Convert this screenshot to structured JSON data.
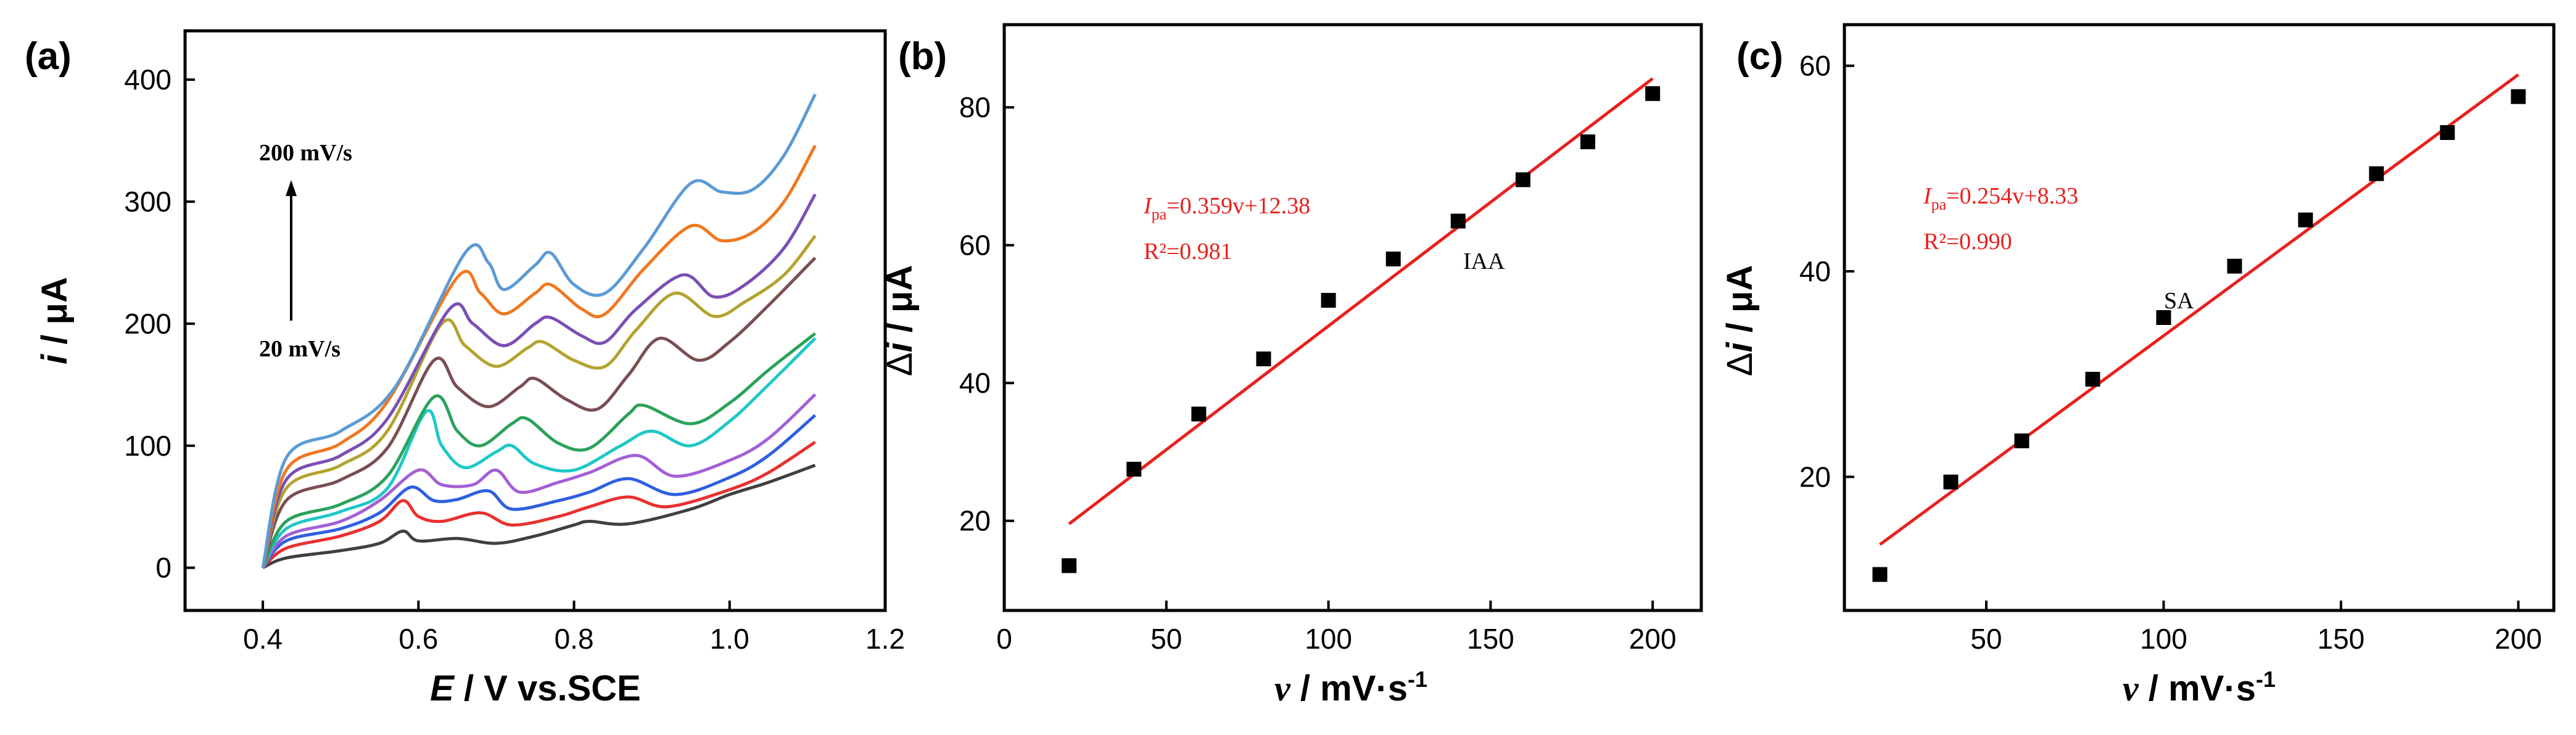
{
  "chart_data": [
    {
      "panel": "(a)",
      "type": "line",
      "xlabel": "E / V vs.SCE",
      "ylabel": "i / μA",
      "xlim": [
        0.3,
        1.2
      ],
      "ylim": [
        -35,
        440
      ],
      "xticks": [
        0.4,
        0.6,
        0.8,
        1.0,
        1.2
      ],
      "yticks": [
        0,
        100,
        200,
        300,
        400
      ],
      "annotations": [
        "200 mV/s",
        "20 mV/s"
      ],
      "series": [
        {
          "color": "#404040",
          "points": [
            [
              0.4,
              0
            ],
            [
              0.43,
              8
            ],
            [
              0.5,
              14
            ],
            [
              0.55,
              20
            ],
            [
              0.58,
              30
            ],
            [
              0.6,
              22
            ],
            [
              0.65,
              24
            ],
            [
              0.7,
              20
            ],
            [
              0.75,
              26
            ],
            [
              0.8,
              35
            ],
            [
              0.82,
              38
            ],
            [
              0.87,
              36
            ],
            [
              0.95,
              48
            ],
            [
              1.0,
              60
            ],
            [
              1.05,
              70
            ],
            [
              1.11,
              84
            ]
          ]
        },
        {
          "color": "#e83030",
          "points": [
            [
              0.4,
              0
            ],
            [
              0.43,
              16
            ],
            [
              0.5,
              26
            ],
            [
              0.55,
              38
            ],
            [
              0.58,
              55
            ],
            [
              0.6,
              42
            ],
            [
              0.63,
              38
            ],
            [
              0.68,
              45
            ],
            [
              0.72,
              35
            ],
            [
              0.78,
              42
            ],
            [
              0.82,
              50
            ],
            [
              0.87,
              58
            ],
            [
              0.92,
              50
            ],
            [
              1.0,
              64
            ],
            [
              1.05,
              78
            ],
            [
              1.11,
              103
            ]
          ]
        },
        {
          "color": "#2e5fe0",
          "points": [
            [
              0.4,
              0
            ],
            [
              0.43,
              22
            ],
            [
              0.5,
              32
            ],
            [
              0.55,
              45
            ],
            [
              0.59,
              66
            ],
            [
              0.62,
              55
            ],
            [
              0.65,
              56
            ],
            [
              0.69,
              63
            ],
            [
              0.72,
              48
            ],
            [
              0.78,
              55
            ],
            [
              0.82,
              62
            ],
            [
              0.87,
              73
            ],
            [
              0.93,
              60
            ],
            [
              1.0,
              74
            ],
            [
              1.05,
              92
            ],
            [
              1.11,
              125
            ]
          ]
        },
        {
          "color": "#a45fd6",
          "points": [
            [
              0.4,
              0
            ],
            [
              0.43,
              26
            ],
            [
              0.5,
              38
            ],
            [
              0.55,
              55
            ],
            [
              0.6,
              80
            ],
            [
              0.63,
              68
            ],
            [
              0.67,
              68
            ],
            [
              0.7,
              80
            ],
            [
              0.73,
              62
            ],
            [
              0.78,
              70
            ],
            [
              0.82,
              78
            ],
            [
              0.88,
              92
            ],
            [
              0.93,
              75
            ],
            [
              1.0,
              88
            ],
            [
              1.05,
              106
            ],
            [
              1.11,
              142
            ]
          ]
        },
        {
          "color": "#1fc7c7",
          "points": [
            [
              0.4,
              0
            ],
            [
              0.43,
              32
            ],
            [
              0.5,
              46
            ],
            [
              0.56,
              65
            ],
            [
              0.61,
              128
            ],
            [
              0.63,
              100
            ],
            [
              0.66,
              82
            ],
            [
              0.7,
              95
            ],
            [
              0.72,
              100
            ],
            [
              0.75,
              85
            ],
            [
              0.8,
              80
            ],
            [
              0.86,
              100
            ],
            [
              0.9,
              112
            ],
            [
              0.95,
              100
            ],
            [
              1.0,
              120
            ],
            [
              1.05,
              150
            ],
            [
              1.11,
              188
            ]
          ]
        },
        {
          "color": "#2aa25a",
          "points": [
            [
              0.4,
              0
            ],
            [
              0.43,
              38
            ],
            [
              0.5,
              52
            ],
            [
              0.56,
              75
            ],
            [
              0.62,
              140
            ],
            [
              0.65,
              112
            ],
            [
              0.68,
              100
            ],
            [
              0.72,
              118
            ],
            [
              0.74,
              122
            ],
            [
              0.78,
              102
            ],
            [
              0.82,
              98
            ],
            [
              0.87,
              126
            ],
            [
              0.89,
              133
            ],
            [
              0.95,
              118
            ],
            [
              1.0,
              135
            ],
            [
              1.05,
              162
            ],
            [
              1.11,
              192
            ]
          ]
        },
        {
          "color": "#7a4e52",
          "points": [
            [
              0.4,
              0
            ],
            [
              0.43,
              55
            ],
            [
              0.5,
              72
            ],
            [
              0.56,
              98
            ],
            [
              0.62,
              170
            ],
            [
              0.65,
              148
            ],
            [
              0.69,
              132
            ],
            [
              0.73,
              148
            ],
            [
              0.75,
              155
            ],
            [
              0.79,
              138
            ],
            [
              0.83,
              130
            ],
            [
              0.87,
              158
            ],
            [
              0.91,
              188
            ],
            [
              0.96,
              170
            ],
            [
              1.0,
              185
            ],
            [
              1.05,
              215
            ],
            [
              1.11,
              254
            ]
          ]
        },
        {
          "color": "#b3a32e",
          "points": [
            [
              0.4,
              0
            ],
            [
              0.43,
              65
            ],
            [
              0.5,
              84
            ],
            [
              0.56,
              112
            ],
            [
              0.63,
              200
            ],
            [
              0.66,
              182
            ],
            [
              0.7,
              165
            ],
            [
              0.74,
              180
            ],
            [
              0.76,
              185
            ],
            [
              0.8,
              170
            ],
            [
              0.84,
              165
            ],
            [
              0.88,
              195
            ],
            [
              0.93,
              225
            ],
            [
              0.98,
              206
            ],
            [
              1.02,
              218
            ],
            [
              1.07,
              240
            ],
            [
              1.11,
              272
            ]
          ]
        },
        {
          "color": "#7a4fb3",
          "points": [
            [
              0.4,
              0
            ],
            [
              0.43,
              72
            ],
            [
              0.5,
              92
            ],
            [
              0.56,
              122
            ],
            [
              0.64,
              212
            ],
            [
              0.67,
              200
            ],
            [
              0.71,
              182
            ],
            [
              0.75,
              200
            ],
            [
              0.77,
              205
            ],
            [
              0.81,
              190
            ],
            [
              0.84,
              185
            ],
            [
              0.88,
              212
            ],
            [
              0.94,
              240
            ],
            [
              0.98,
              222
            ],
            [
              1.02,
              232
            ],
            [
              1.07,
              262
            ],
            [
              1.11,
              306
            ]
          ]
        },
        {
          "color": "#f07820",
          "points": [
            [
              0.4,
              0
            ],
            [
              0.43,
              80
            ],
            [
              0.5,
              102
            ],
            [
              0.56,
              136
            ],
            [
              0.65,
              238
            ],
            [
              0.68,
              225
            ],
            [
              0.71,
              208
            ],
            [
              0.75,
              225
            ],
            [
              0.77,
              232
            ],
            [
              0.81,
              212
            ],
            [
              0.84,
              208
            ],
            [
              0.89,
              245
            ],
            [
              0.95,
              280
            ],
            [
              0.99,
              268
            ],
            [
              1.03,
              275
            ],
            [
              1.07,
              300
            ],
            [
              1.11,
              346
            ]
          ]
        },
        {
          "color": "#5b9bd5",
          "points": [
            [
              0.4,
              0
            ],
            [
              0.43,
              90
            ],
            [
              0.5,
              112
            ],
            [
              0.57,
              148
            ],
            [
              0.66,
              258
            ],
            [
              0.69,
              250
            ],
            [
              0.71,
              228
            ],
            [
              0.75,
              248
            ],
            [
              0.77,
              258
            ],
            [
              0.8,
              232
            ],
            [
              0.84,
              225
            ],
            [
              0.89,
              262
            ],
            [
              0.95,
              315
            ],
            [
              0.99,
              308
            ],
            [
              1.03,
              310
            ],
            [
              1.07,
              338
            ],
            [
              1.11,
              388
            ]
          ]
        }
      ]
    },
    {
      "panel": "(b)",
      "type": "scatter",
      "xlabel": "v / mV·s-1",
      "ylabel": "Δi / μA",
      "xlim": [
        0,
        215
      ],
      "ylim": [
        7,
        92
      ],
      "xticks": [
        0,
        50,
        100,
        150,
        200
      ],
      "yticks": [
        20,
        40,
        60,
        80
      ],
      "x": [
        20,
        40,
        60,
        80,
        100,
        120,
        140,
        160,
        180,
        200
      ],
      "y": [
        13.5,
        27.5,
        35.5,
        43.5,
        52,
        58,
        63.5,
        69.5,
        75,
        82
      ],
      "fit": {
        "slope": 0.359,
        "intercept": 12.38,
        "x_range": [
          20,
          200
        ],
        "color": "#e8201e"
      },
      "fit_label_sub": "pa",
      "fit_label_eq": "=0.359v+12.38",
      "fit_label_r2": "R²=0.981",
      "label": "IAA"
    },
    {
      "panel": "(c)",
      "type": "scatter",
      "xlabel": "v / mV·s-1",
      "ylabel": "Δi / μA",
      "xlim": [
        10,
        210
      ],
      "ylim": [
        7,
        64
      ],
      "xticks": [
        50,
        100,
        150,
        200
      ],
      "yticks": [
        20,
        40,
        60
      ],
      "x": [
        20,
        40,
        60,
        80,
        100,
        120,
        140,
        160,
        180,
        200
      ],
      "y": [
        10.5,
        19.5,
        23.5,
        29.5,
        35.5,
        40.5,
        45,
        49.5,
        53.5,
        57
      ],
      "fit": {
        "slope": 0.254,
        "intercept": 8.33,
        "x_range": [
          20,
          200
        ],
        "color": "#e8201e"
      },
      "fit_label_sub": "pa",
      "fit_label_eq": "=0.254v+8.33",
      "fit_label_r2": "R²=0.990",
      "label": "SA"
    }
  ]
}
